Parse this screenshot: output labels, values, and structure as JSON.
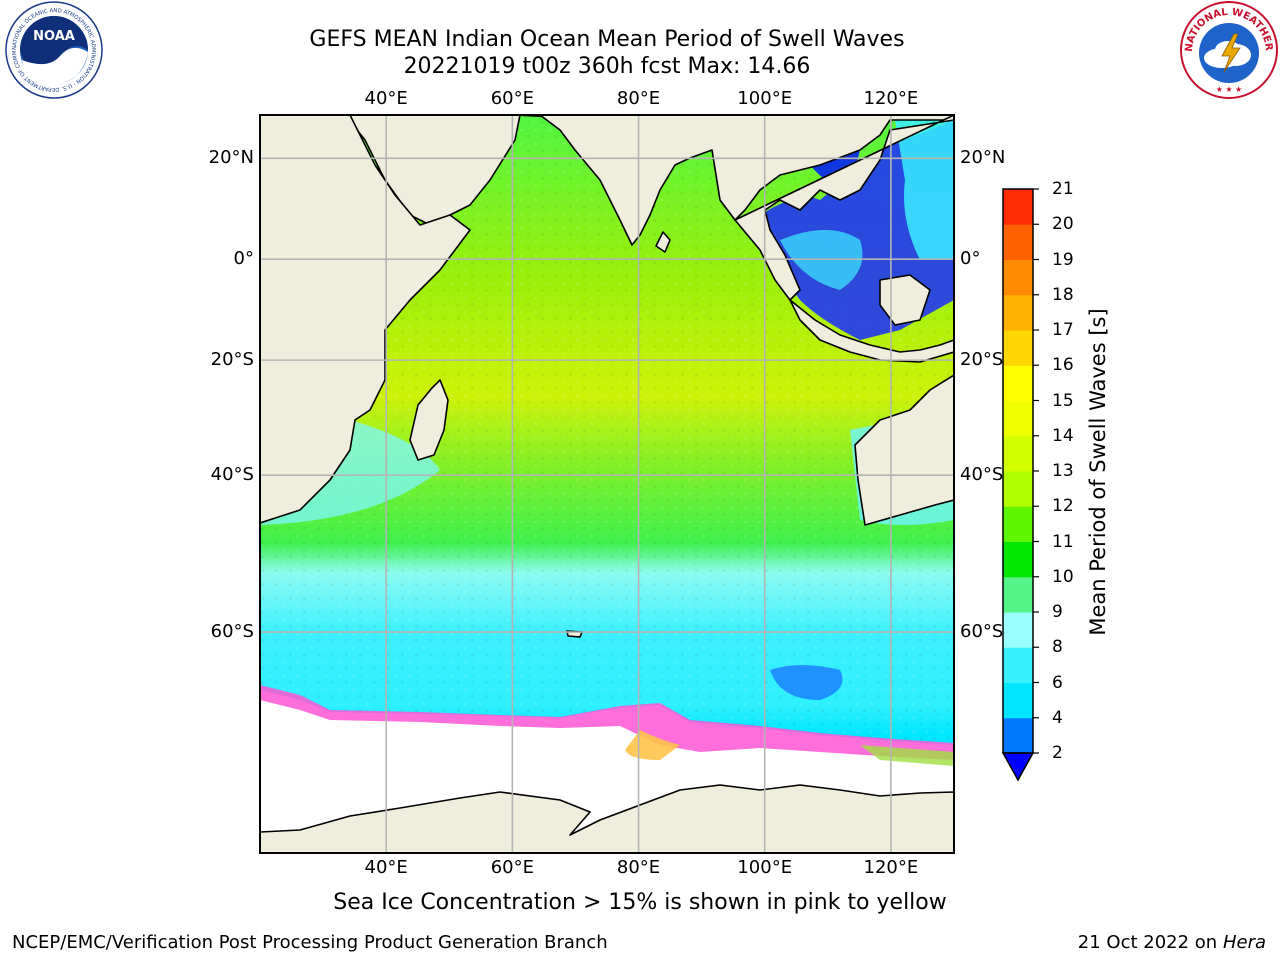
{
  "title": {
    "line1": "GEFS MEAN Indian Ocean Mean Period of Swell Waves",
    "line2": "20221019 t00z 360h fcst   Max: 14.66"
  },
  "logos": {
    "left": {
      "name": "noaa-logo",
      "text": "NOAA",
      "ring_text": "NATIONAL OCEANIC AND ATMOSPHERIC ADMINISTRATION · U.S. DEPARTMENT OF COMMERCE"
    },
    "right": {
      "name": "nws-logo",
      "ring_text": "NATIONAL WEATHER SERVICE"
    }
  },
  "map": {
    "lon_ticks": [
      "40°E",
      "60°E",
      "80°E",
      "100°E",
      "120°E"
    ],
    "lat_ticks": [
      "20°N",
      "0°",
      "20°S",
      "40°S",
      "60°S"
    ],
    "lon_values": [
      40,
      60,
      80,
      100,
      120
    ],
    "lat_values": [
      20,
      0,
      -20,
      -40,
      -60
    ],
    "lon_range": [
      20,
      130
    ],
    "lat_range": [
      -76,
      28
    ],
    "colors": {
      "land": "#efeddc",
      "ice_free_southern": "#ffffff",
      "grid": "#b4b4b4",
      "coast": "#000000"
    }
  },
  "colorbar": {
    "label": "Mean Period of Swell Waves [s]",
    "ticks": [
      "2",
      "4",
      "6",
      "8",
      "9",
      "10",
      "11",
      "12",
      "13",
      "14",
      "15",
      "16",
      "17",
      "18",
      "19",
      "20",
      "21"
    ],
    "colors": [
      "#0077ff",
      "#00e6ff",
      "#39f0ff",
      "#9bffff",
      "#55f58a",
      "#00e600",
      "#5ef500",
      "#b2ff00",
      "#d4ff00",
      "#f0ff00",
      "#ffff00",
      "#ffd700",
      "#ffb000",
      "#ff8c00",
      "#ff6000",
      "#ff2d00"
    ],
    "under_color": "#0000ff"
  },
  "caption": "Sea Ice Concentration > 15% is shown in pink to yellow",
  "footer": {
    "left": "NCEP/EMC/Verification Post Processing Product Generation Branch",
    "right_prefix": "21 Oct 2022 on ",
    "right_host": "Hera"
  }
}
